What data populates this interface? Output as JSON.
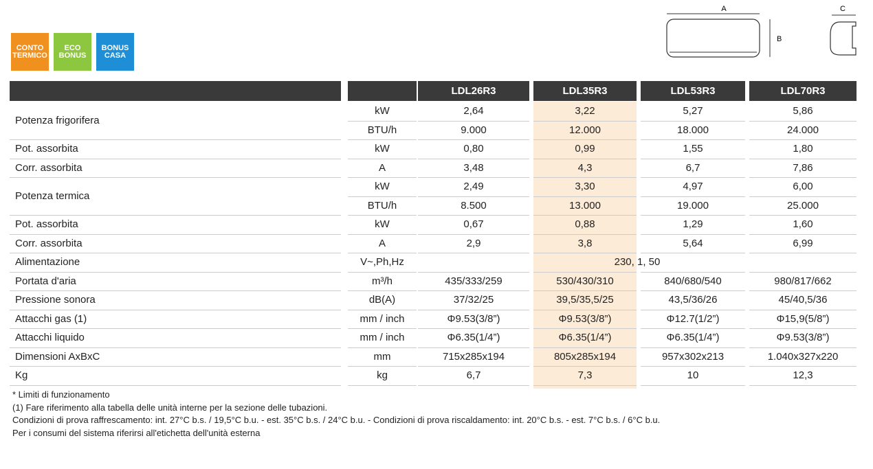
{
  "badges": [
    [
      "CONTO",
      "TERMICO"
    ],
    [
      "ECO",
      "BONUS"
    ],
    [
      "BONUS",
      "CASA"
    ]
  ],
  "diagram": {
    "labels": [
      "A",
      "B",
      "C"
    ]
  },
  "table": {
    "models": [
      "LDL26R3",
      "LDL35R3",
      "LDL53R3",
      "LDL70R3"
    ],
    "groups": [
      {
        "label": "Potenza frigorifera",
        "rows": [
          {
            "unit": "kW",
            "values": [
              "2,64",
              "3,22",
              "5,27",
              "5,86"
            ]
          },
          {
            "unit": "BTU/h",
            "values": [
              "9.000",
              "12.000",
              "18.000",
              "24.000"
            ]
          }
        ]
      },
      {
        "label": "Pot. assorbita",
        "rows": [
          {
            "unit": "kW",
            "values": [
              "0,80",
              "0,99",
              "1,55",
              "1,80"
            ]
          }
        ]
      },
      {
        "label": "Corr. assorbita",
        "rows": [
          {
            "unit": "A",
            "values": [
              "3,48",
              "4,3",
              "6,7",
              "7,86"
            ]
          }
        ]
      },
      {
        "label": "Potenza termica",
        "rows": [
          {
            "unit": "kW",
            "values": [
              "2,49",
              "3,30",
              "4,97",
              "6,00"
            ]
          },
          {
            "unit": "BTU/h",
            "values": [
              "8.500",
              "13.000",
              "19.000",
              "25.000"
            ]
          }
        ]
      },
      {
        "label": "Pot. assorbita",
        "rows": [
          {
            "unit": "kW",
            "values": [
              "0,67",
              "0,88",
              "1,29",
              "1,60"
            ]
          }
        ]
      },
      {
        "label": "Corr. assorbita",
        "rows": [
          {
            "unit": "A",
            "values": [
              "2,9",
              "3,8",
              "5,64",
              "6,99"
            ]
          }
        ]
      },
      {
        "label": "Alimentazione",
        "rows": [
          {
            "unit": "V~,Ph,Hz",
            "values": [
              "230, 1, 50"
            ]
          }
        ]
      },
      {
        "label": "Portata d'aria",
        "rows": [
          {
            "unit": "m³/h",
            "values": [
              "435/333/259",
              "530/430/310",
              "840/680/540",
              "980/817/662"
            ]
          }
        ]
      },
      {
        "label": "Pressione sonora",
        "rows": [
          {
            "unit": "dB(A)",
            "values": [
              "37/32/25",
              "39,5/35,5/25",
              "43,5/36/26",
              "45/40,5/36"
            ]
          }
        ]
      },
      {
        "label": "Attacchi gas  (1)",
        "rows": [
          {
            "unit": "mm / inch",
            "values": [
              "Φ9.53(3/8”)",
              "Φ9.53(3/8”)",
              "Φ12.7(1/2”)",
              "Φ15,9(5/8”)"
            ]
          }
        ]
      },
      {
        "label": "Attacchi liquido",
        "rows": [
          {
            "unit": "mm / inch",
            "values": [
              "Φ6.35(1/4”)",
              "Φ6.35(1/4”)",
              "Φ6.35(1/4”)",
              "Φ9.53(3/8”)"
            ]
          }
        ]
      },
      {
        "label": "Dimensioni AxBxC",
        "rows": [
          {
            "unit": "mm",
            "values": [
              "715x285x194",
              "805x285x194",
              "957x302x213",
              "1.040x327x220"
            ]
          }
        ]
      },
      {
        "label": "Kg",
        "rows": [
          {
            "unit": "kg",
            "values": [
              "6,7",
              "7,3",
              "10",
              "12,3"
            ]
          }
        ]
      }
    ]
  },
  "footnotes": [
    "* Limiti di funzionamento",
    "(1) Fare riferimento alla tabella delle unità interne per la sezione delle tubazioni.",
    "Condizioni di prova raffrescamento: int. 27°C b.s. / 19,5°C b.u. - est. 35°C b.s. / 24°C b.u. - Condizioni di prova riscaldamento: int. 20°C b.s. - est. 7°C b.s. / 6°C b.u.",
    "Per i consumi del sistema riferirsi all'etichetta dell'unità esterna"
  ]
}
